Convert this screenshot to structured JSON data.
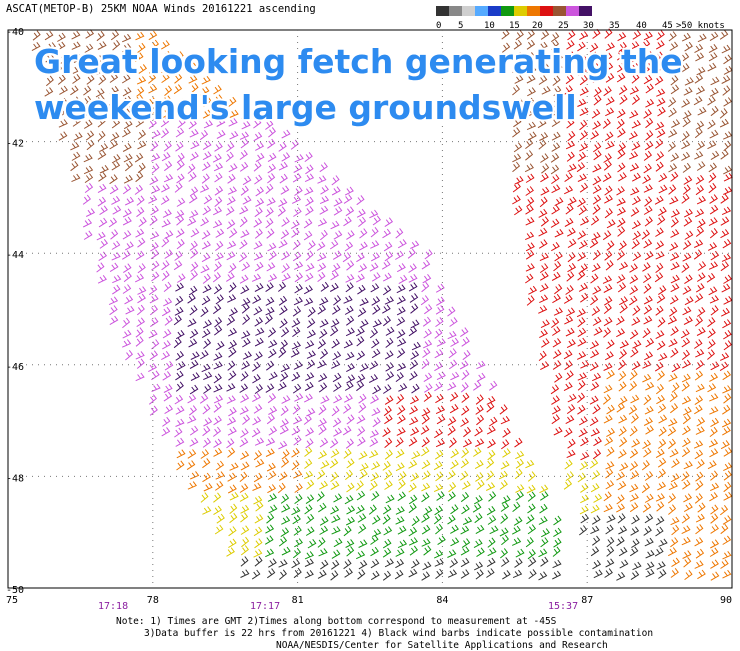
{
  "header": "ASCAT(METOP-B) 25KM NOAA Winds 20161221 ascending",
  "colorbar": {
    "labels": [
      "0",
      "5",
      "10",
      "15",
      "20",
      "25",
      "30",
      "35",
      "40",
      "45",
      ">50 knots"
    ],
    "colors": [
      "#333333",
      "#888888",
      "#cfcfcf",
      "#55aaff",
      "#1a3cc8",
      "#119911",
      "#ddcc00",
      "#ee7700",
      "#dd1111",
      "#995533",
      "#cc55dd",
      "#441166"
    ]
  },
  "headline": [
    "Great looking fetch generating the",
    "weekend's large groundswell"
  ],
  "map": {
    "lon_range": [
      75,
      90
    ],
    "lat_range": [
      -50,
      -40
    ],
    "x_ticks": [
      "75",
      "78",
      "81",
      "84",
      "87",
      "90"
    ],
    "y_ticks": [
      "-40",
      "-42",
      "-44",
      "-46",
      "-48",
      "-50"
    ],
    "pass_times": [
      "17:18",
      "17:17",
      "15:37"
    ],
    "time_color": "#8a1fa0"
  },
  "notes": [
    "Note: 1) Times are GMT 2)Times along bottom correspond to measurement at -45S",
    "3)Data buffer is 22 hrs from 20161221 4) Black wind barbs indicate possible contamination",
    "NOAA/NESDIS/Center for Satellite Applications and Research"
  ]
}
